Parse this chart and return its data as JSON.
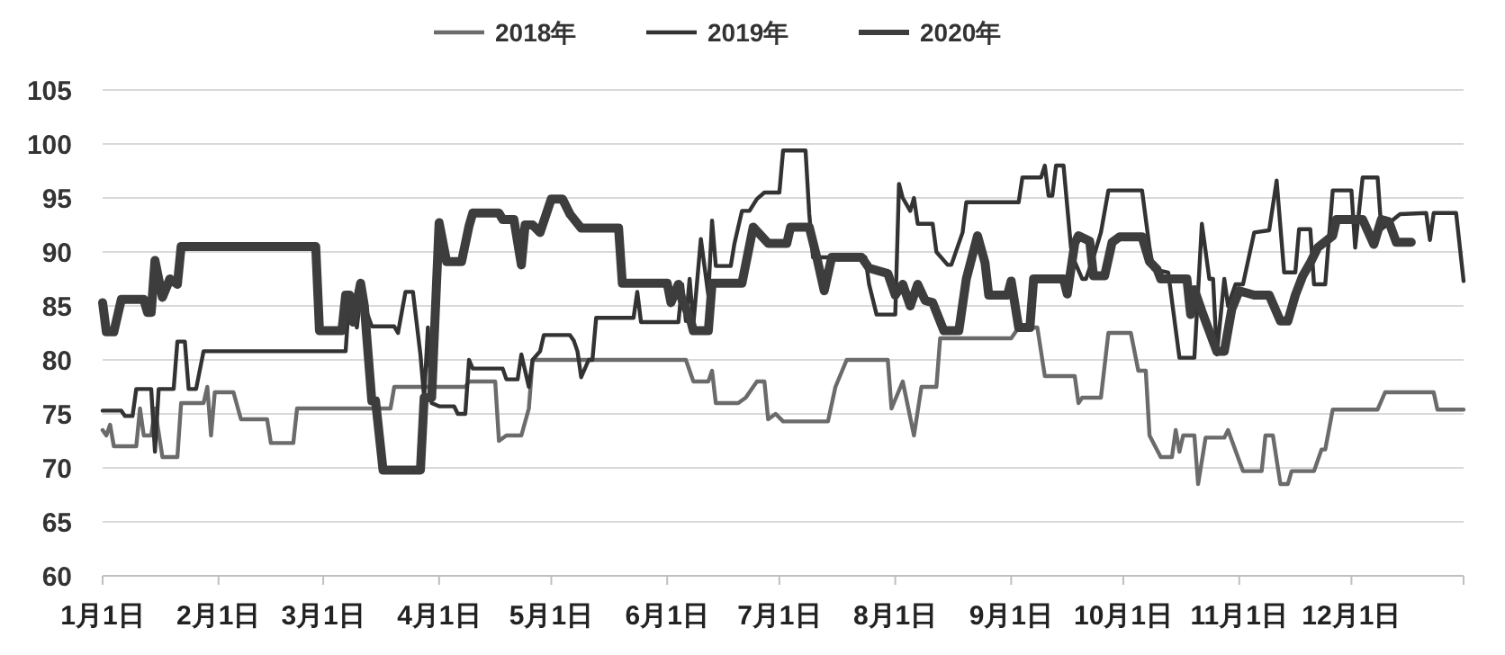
{
  "chart_data": {
    "type": "line",
    "xlim": [
      "--01-01",
      "--12-31"
    ],
    "xticks": [
      {
        "value": "--01-01",
        "label": "1月1日"
      },
      {
        "value": "--02-01",
        "label": "2月1日"
      },
      {
        "value": "--03-01",
        "label": "3月1日"
      },
      {
        "value": "--04-01",
        "label": "4月1日"
      },
      {
        "value": "--05-01",
        "label": "5月1日"
      },
      {
        "value": "--06-01",
        "label": "6月1日"
      },
      {
        "value": "--07-01",
        "label": "7月1日"
      },
      {
        "value": "--08-01",
        "label": "8月1日"
      },
      {
        "value": "--09-01",
        "label": "9月1日"
      },
      {
        "value": "--10-01",
        "label": "10月1日"
      },
      {
        "value": "--11-01",
        "label": "11月1日"
      },
      {
        "value": "--12-01",
        "label": "12月1日"
      }
    ],
    "ylim": [
      60,
      105
    ],
    "yticks": [
      60,
      65,
      70,
      75,
      80,
      85,
      90,
      95,
      100,
      105
    ],
    "grid": "y",
    "legend": "top",
    "line_style": "solid",
    "series": [
      {
        "name": "2018年",
        "color": "#6b6b6b",
        "x": [
          "--01-01",
          "--01-02",
          "--01-03",
          "--01-04",
          "--01-10",
          "--01-11",
          "--01-12",
          "--01-14",
          "--01-15",
          "--01-17",
          "--01-21",
          "--01-22",
          "--01-28",
          "--01-29",
          "--01-30",
          "--01-31",
          "--02-05",
          "--02-07",
          "--02-14",
          "--02-15",
          "--02-21",
          "--02-22",
          "--03-19",
          "--03-20",
          "--04-08",
          "--04-09",
          "--04-16",
          "--04-17",
          "--04-19",
          "--04-23",
          "--04-25",
          "--04-26",
          "--06-06",
          "--06-08",
          "--06-12",
          "--06-13",
          "--06-14",
          "--06-20",
          "--06-22",
          "--06-25",
          "--06-27",
          "--06-28",
          "--06-30",
          "--07-02",
          "--07-14",
          "--07-16",
          "--07-19",
          "--07-30",
          "--07-31",
          "--08-03",
          "--08-06",
          "--08-08",
          "--08-12",
          "--08-13",
          "--09-01",
          "--09-03",
          "--09-08",
          "--09-10",
          "--09-18",
          "--09-19",
          "--09-20",
          "--09-25",
          "--09-27",
          "--10-03",
          "--10-05",
          "--10-07",
          "--10-08",
          "--10-11",
          "--10-14",
          "--10-15",
          "--10-16",
          "--10-17",
          "--10-20",
          "--10-21",
          "--10-23",
          "--10-28",
          "--10-29",
          "--11-02",
          "--11-07",
          "--11-08",
          "--11-10",
          "--11-12",
          "--11-14",
          "--11-15",
          "--11-21",
          "--11-23",
          "--11-24",
          "--11-26",
          "--12-08",
          "--12-10",
          "--12-23",
          "--12-24",
          "--12-31"
        ],
        "values": [
          73.5,
          73,
          74,
          72,
          72,
          75.5,
          73,
          73,
          75.5,
          71,
          71,
          76,
          76,
          77.5,
          73,
          77,
          77,
          74.5,
          74.5,
          72.3,
          72.3,
          75.5,
          75.5,
          77.5,
          77.5,
          78,
          78,
          72.5,
          73,
          73,
          75.5,
          80,
          80,
          78,
          78,
          79,
          76,
          76,
          76.5,
          78,
          78,
          74.5,
          75,
          74.3,
          74.3,
          77.5,
          80,
          80,
          75.5,
          78,
          73,
          77.5,
          77.5,
          82,
          82,
          83,
          83,
          78.5,
          78.5,
          76,
          76.5,
          76.5,
          82.5,
          82.5,
          79,
          79,
          73,
          71,
          71,
          73.5,
          71.5,
          73,
          73,
          68.5,
          72.8,
          72.8,
          73.5,
          69.7,
          69.7,
          73,
          73,
          68.5,
          68.5,
          69.7,
          69.7,
          71.7,
          71.7,
          75.4,
          75.4,
          77,
          77,
          75.4,
          75.4
        ]
      },
      {
        "name": "2019年",
        "color": "#333333",
        "x": [
          "--01-01",
          "--01-06",
          "--01-07",
          "--01-09",
          "--01-10",
          "--01-14",
          "--01-15",
          "--01-16",
          "--01-20",
          "--01-21",
          "--01-23",
          "--01-24",
          "--01-26",
          "--01-28",
          "--03-07",
          "--03-08",
          "--03-09",
          "--03-10",
          "--03-11",
          "--03-14",
          "--03-20",
          "--03-21",
          "--03-23",
          "--03-25",
          "--03-27",
          "--03-28",
          "--03-29",
          "--03-30",
          "--04-01",
          "--04-05",
          "--04-06",
          "--04-08",
          "--04-09",
          "--04-10",
          "--04-18",
          "--04-19",
          "--04-22",
          "--04-23",
          "--04-25",
          "--04-26",
          "--04-28",
          "--04-29",
          "--05-06",
          "--05-07",
          "--05-08",
          "--05-09",
          "--05-11",
          "--05-12",
          "--05-13",
          "--05-23",
          "--05-24",
          "--05-25",
          "--06-04",
          "--06-05",
          "--06-06",
          "--06-07",
          "--06-08",
          "--06-10",
          "--06-12",
          "--06-13",
          "--06-14",
          "--06-18",
          "--06-19",
          "--06-21",
          "--06-23",
          "--06-25",
          "--06-27",
          "--07-01",
          "--07-02",
          "--07-08",
          "--07-09",
          "--07-10",
          "--07-24",
          "--07-25",
          "--07-27",
          "--08-01",
          "--08-02",
          "--08-03",
          "--08-05",
          "--08-06",
          "--08-07",
          "--08-11",
          "--08-12",
          "--08-15",
          "--08-16",
          "--08-19",
          "--08-20",
          "--08-22",
          "--09-03",
          "--09-04",
          "--09-09",
          "--09-10",
          "--09-11",
          "--09-12",
          "--09-13",
          "--09-15",
          "--09-17",
          "--09-18",
          "--09-20",
          "--09-21",
          "--09-23",
          "--09-25",
          "--09-27",
          "--09-29",
          "--10-06",
          "--10-08",
          "--10-09",
          "--10-13",
          "--10-16",
          "--10-20",
          "--10-22",
          "--10-24",
          "--10-25",
          "--10-26",
          "--10-28",
          "--10-29",
          "--10-31",
          "--11-02",
          "--11-05",
          "--11-09",
          "--11-11",
          "--11-13",
          "--11-16",
          "--11-17",
          "--11-20",
          "--11-21",
          "--11-24",
          "--11-26",
          "--12-01",
          "--12-02",
          "--12-04",
          "--12-08",
          "--12-09",
          "--12-14",
          "--12-21",
          "--12-22",
          "--12-23",
          "--12-29",
          "--12-31"
        ],
        "values": [
          75.3,
          75.3,
          74.8,
          74.8,
          77.3,
          77.3,
          71.5,
          77.3,
          77.3,
          81.7,
          81.7,
          77.3,
          77.3,
          80.8,
          80.8,
          86,
          86,
          83,
          86,
          83.1,
          83.1,
          82.5,
          86.3,
          86.3,
          80.5,
          76.5,
          83,
          76,
          75.7,
          75.7,
          75,
          75,
          80,
          79.2,
          79.2,
          78.2,
          78.2,
          80.5,
          77.5,
          80,
          80.8,
          82.3,
          82.3,
          81.8,
          80.8,
          78.4,
          80,
          80,
          83.9,
          83.9,
          86.3,
          83.5,
          83.5,
          87,
          83.6,
          87.5,
          83.3,
          91.2,
          86,
          92.9,
          88.7,
          88.7,
          90.8,
          93.8,
          93.8,
          94.9,
          95.5,
          95.5,
          99.4,
          99.4,
          93.5,
          89.5,
          89.5,
          87,
          84.2,
          84.2,
          96.3,
          95,
          93.8,
          95,
          92.6,
          92.6,
          90,
          88.8,
          88.8,
          91.8,
          94.6,
          94.6,
          94.6,
          96.9,
          96.9,
          98,
          95.2,
          95.2,
          98,
          98,
          90.4,
          89.1,
          87.5,
          87.5,
          89.5,
          91.8,
          95.7,
          95.7,
          95.7,
          90.4,
          88.4,
          88.1,
          80.2,
          80.2,
          92.6,
          87.5,
          87.5,
          80.5,
          87.5,
          85,
          87,
          87,
          91.8,
          92,
          96.6,
          88.1,
          88.1,
          92.1,
          92.1,
          87,
          87,
          95.7,
          95.7,
          90.4,
          96.9,
          96.9,
          92.1,
          93.5,
          93.6,
          91.1,
          93.6,
          93.6,
          87.3
        ]
      },
      {
        "name": "2020年",
        "color": "#3d3d3d",
        "x": [
          "--01-01",
          "--01-02",
          "--01-04",
          "--01-06",
          "--01-12",
          "--01-13",
          "--01-14",
          "--01-15",
          "--01-17",
          "--01-19",
          "--01-21",
          "--01-22",
          "--02-27",
          "--02-28",
          "--03-06",
          "--03-07",
          "--03-08",
          "--03-09",
          "--03-11",
          "--03-12",
          "--03-14",
          "--03-15",
          "--03-17",
          "--03-27",
          "--03-28",
          "--03-30",
          "--04-01",
          "--04-03",
          "--04-07",
          "--04-09",
          "--04-10",
          "--04-17",
          "--04-18",
          "--04-21",
          "--04-23",
          "--04-24",
          "--04-26",
          "--04-28",
          "--05-01",
          "--05-04",
          "--05-06",
          "--05-09",
          "--05-19",
          "--05-20",
          "--06-01",
          "--06-02",
          "--06-04",
          "--06-05",
          "--06-07",
          "--06-08",
          "--06-12",
          "--06-13",
          "--06-21",
          "--06-24",
          "--06-28",
          "--07-03",
          "--07-04",
          "--07-09",
          "--07-11",
          "--07-13",
          "--07-15",
          "--07-23",
          "--07-25",
          "--07-30",
          "--08-01",
          "--08-03",
          "--08-05",
          "--08-07",
          "--08-09",
          "--08-11",
          "--08-14",
          "--08-18",
          "--08-20",
          "--08-23",
          "--08-25",
          "--08-26",
          "--08-31",
          "--09-01",
          "--09-03",
          "--09-06",
          "--09-07",
          "--09-15",
          "--09-16",
          "--09-18",
          "--09-19",
          "--09-22",
          "--09-23",
          "--09-26",
          "--09-28",
          "--09-30",
          "--10-06",
          "--10-08",
          "--10-10",
          "--10-11",
          "--10-18",
          "--10-19",
          "--10-20",
          "--10-22",
          "--10-26",
          "--10-28",
          "--10-30",
          "--11-01",
          "--11-05",
          "--11-09",
          "--11-12",
          "--11-14",
          "--11-16",
          "--11-18",
          "--11-20",
          "--11-22",
          "--11-26",
          "--11-27",
          "--12-04",
          "--12-07",
          "--12-09",
          "--12-11",
          "--12-13",
          "--12-17"
        ],
        "values": [
          85.3,
          82.6,
          82.6,
          85.6,
          85.6,
          84.4,
          84.4,
          89.2,
          85.8,
          87.5,
          87,
          90.5,
          90.5,
          82.7,
          82.7,
          86,
          86,
          83.5,
          87.1,
          85,
          76.2,
          76.2,
          69.8,
          69.8,
          76.5,
          76.5,
          92.7,
          89.1,
          89.1,
          92.4,
          93.6,
          93.6,
          93,
          93,
          88.8,
          92.5,
          92.5,
          91.8,
          94.9,
          94.9,
          93.5,
          92.2,
          92.2,
          87.1,
          87.1,
          85.3,
          87,
          85.5,
          84,
          82.7,
          82.7,
          87.1,
          87.1,
          92.3,
          90.8,
          90.8,
          92.3,
          92.3,
          89.5,
          86.4,
          89.5,
          89.5,
          88.5,
          88,
          86,
          87,
          85,
          87,
          85.5,
          85.3,
          82.7,
          82.7,
          87.5,
          91.5,
          89,
          86,
          86,
          87.3,
          83,
          83,
          87.5,
          87.5,
          86.1,
          90.8,
          91.5,
          91,
          87.8,
          87.8,
          90.9,
          91.4,
          91.4,
          89.1,
          88.4,
          87.5,
          87.5,
          84.2,
          86.5,
          84.5,
          80.8,
          80.8,
          84.7,
          86.4,
          86,
          86,
          83.6,
          83.6,
          86,
          87.8,
          89,
          90.4,
          91.5,
          93,
          93,
          90.7,
          93,
          92.8,
          90.9,
          90.9
        ]
      }
    ]
  }
}
